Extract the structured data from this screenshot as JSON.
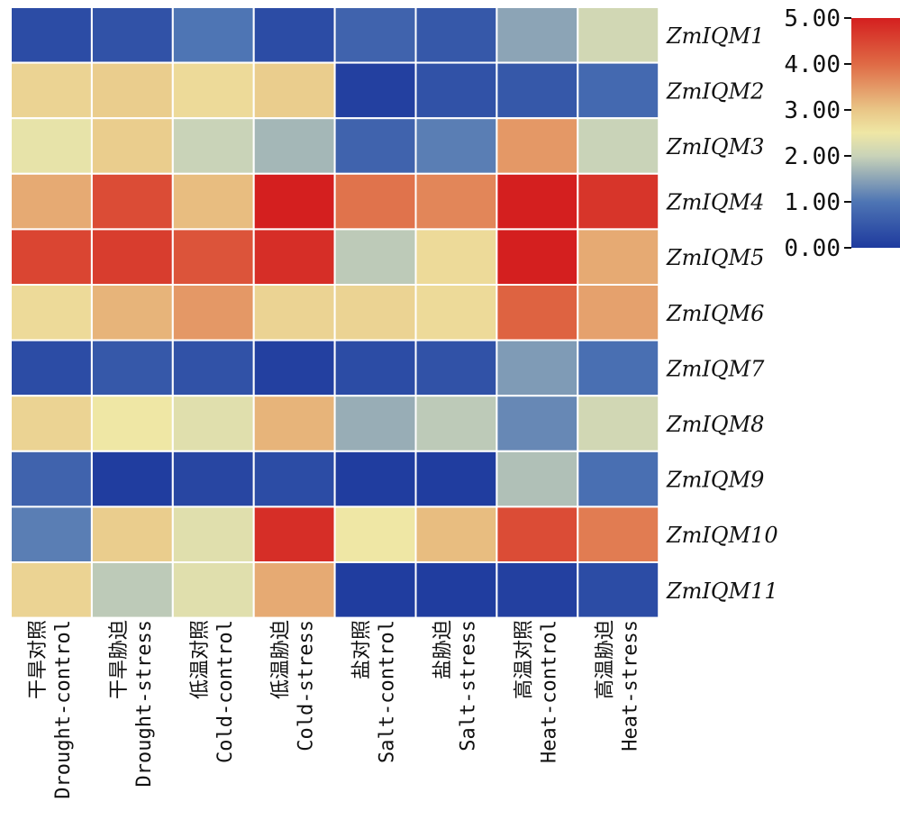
{
  "chart_data": {
    "type": "heatmap",
    "rows": [
      "ZmIQM1",
      "ZmIQM2",
      "ZmIQM3",
      "ZmIQM4",
      "ZmIQM5",
      "ZmIQM6",
      "ZmIQM7",
      "ZmIQM8",
      "ZmIQM9",
      "ZmIQM10",
      "ZmIQM11"
    ],
    "columns": [
      {
        "cn": "干旱对照",
        "en": "Drought-control"
      },
      {
        "cn": "干旱胁迫",
        "en": "Drought-stress"
      },
      {
        "cn": "低温对照",
        "en": "Cold-control"
      },
      {
        "cn": "低温胁迫",
        "en": "Cold-stress"
      },
      {
        "cn": "盐对照",
        "en": "Salt-control"
      },
      {
        "cn": "盐胁迫",
        "en": "Salt-stress"
      },
      {
        "cn": "高温对照",
        "en": "Heat-control"
      },
      {
        "cn": "高温胁迫",
        "en": "Heat-stress"
      }
    ],
    "values": [
      [
        0.3,
        0.4,
        1.0,
        0.3,
        0.7,
        0.5,
        1.5,
        2.1
      ],
      [
        2.8,
        2.9,
        2.7,
        2.9,
        0.1,
        0.4,
        0.5,
        0.8
      ],
      [
        2.4,
        2.9,
        2.0,
        1.7,
        0.7,
        1.1,
        3.5,
        2.0
      ],
      [
        3.3,
        4.4,
        3.1,
        5.0,
        3.9,
        3.7,
        5.0,
        4.7
      ],
      [
        4.5,
        4.6,
        4.3,
        4.8,
        1.9,
        2.7,
        5.0,
        3.3
      ],
      [
        2.7,
        3.2,
        3.5,
        2.8,
        2.8,
        2.7,
        4.1,
        3.4
      ],
      [
        0.3,
        0.5,
        0.4,
        0.1,
        0.3,
        0.4,
        1.4,
        0.9
      ],
      [
        2.8,
        2.5,
        2.3,
        3.2,
        1.6,
        1.9,
        1.2,
        2.1
      ],
      [
        0.7,
        0.05,
        0.2,
        0.3,
        0.05,
        0.05,
        1.8,
        0.9
      ],
      [
        1.1,
        2.9,
        2.3,
        4.8,
        2.5,
        3.1,
        4.4,
        3.8
      ],
      [
        2.8,
        1.9,
        2.3,
        3.3,
        0.05,
        0.05,
        0.1,
        0.3
      ]
    ],
    "range": [
      0,
      5
    ],
    "colorbar_ticks": [
      "0.00",
      "1.00",
      "2.00",
      "3.00",
      "4.00",
      "5.00"
    ],
    "colorscale": [
      {
        "v": 0.0,
        "color": "#1e3a9e"
      },
      {
        "v": 1.0,
        "color": "#4e75b4"
      },
      {
        "v": 2.0,
        "color": "#c9d3b8"
      },
      {
        "v": 2.5,
        "color": "#efe7a5"
      },
      {
        "v": 3.0,
        "color": "#e9c687"
      },
      {
        "v": 4.0,
        "color": "#df6a45"
      },
      {
        "v": 5.0,
        "color": "#d41f1f"
      }
    ],
    "grid_color": "#ffffff"
  }
}
